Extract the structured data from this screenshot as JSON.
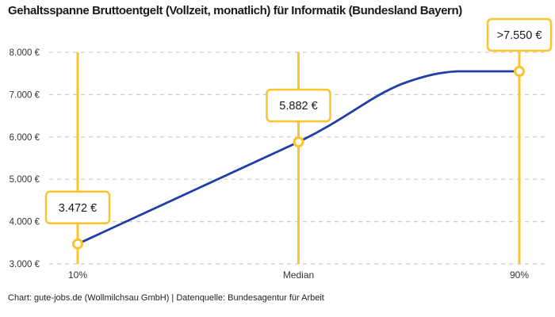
{
  "header": {
    "title": "Gehaltsspanne Bruttoentgelt (Vollzeit, monatlich) für Informatik (Bundesland Bayern)"
  },
  "footer": {
    "text": "Chart: gute-jobs.de (Wollmilchsau GmbH) | Datenquelle: Bundesagentur für Arbeit"
  },
  "chart_data": {
    "type": "line",
    "title": "Gehaltsspanne Bruttoentgelt (Vollzeit, monatlich) für Informatik (Bundesland Bayern)",
    "categories": [
      "10%",
      "Median",
      "90%"
    ],
    "values": [
      3472,
      5882,
      7550
    ],
    "value_labels": [
      "3.472 €",
      "5.882 €",
      ">7.550 €"
    ],
    "ylim": [
      3000,
      8000
    ],
    "yticks": [
      3000,
      4000,
      5000,
      6000,
      7000,
      8000
    ],
    "ytick_labels": [
      "3.000 €",
      "4.000 €",
      "5.000 €",
      "6.000 €",
      "7.000 €",
      "8.000 €"
    ],
    "xlabel": "",
    "ylabel": "",
    "grid": "horizontal-dashed",
    "legend": "none",
    "colors": {
      "line": "#1F3EA8",
      "accent": "#FBC42D",
      "grid": "#CCCCCC",
      "tick_text": "#333333",
      "label_text": "#1A1A1A",
      "marker_fill": "#FFFFFF"
    },
    "source": "Chart: gute-jobs.de (Wollmilchsau GmbH) | Datenquelle: Bundesagentur für Arbeit"
  }
}
